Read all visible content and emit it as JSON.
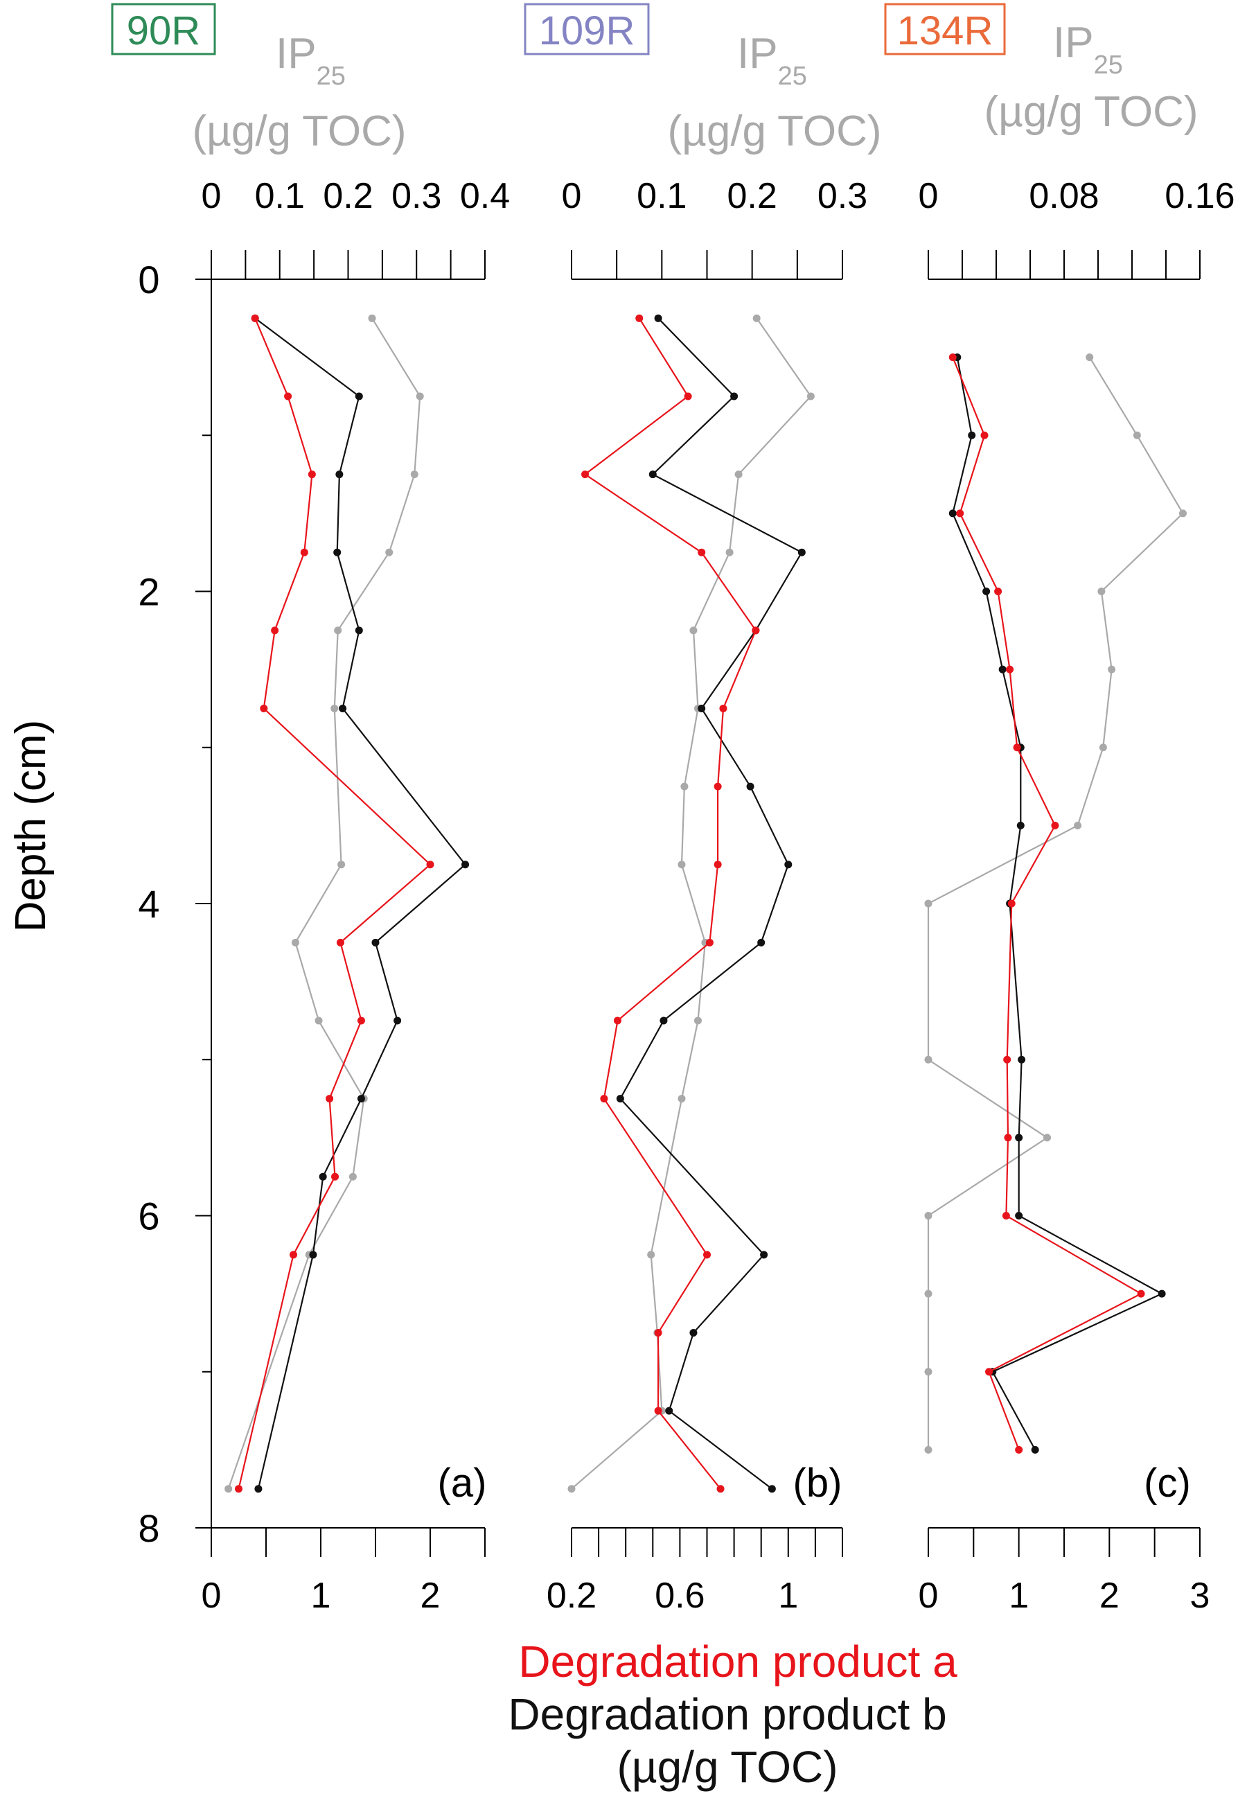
{
  "depth_axis": {
    "label": "Depth (cm)",
    "ticks": [
      "0",
      "2",
      "4",
      "6",
      "8"
    ],
    "range": [
      0,
      8
    ]
  },
  "bottom_legend": {
    "line1": "Degradation product a",
    "line2": "Degradation product b",
    "line3": "(µg/g TOC)"
  },
  "colors": {
    "product_a": "#e8141b",
    "product_b": "#111111",
    "ip25": "#a9a9a9",
    "station_90R": "#2e8b57",
    "station_109R": "#8484c4",
    "station_134R": "#ea6a3a"
  },
  "chart_data": [
    {
      "type": "line",
      "panel_label": "(a)",
      "station": "90R",
      "station_color": "#2e8b57",
      "ip25_label": "IP",
      "ip25_subscript": "25",
      "ip25_unit": "(µg/g TOC)",
      "top_axis": {
        "range": [
          0,
          0.4
        ],
        "ticks": [
          "0",
          "0.1",
          "0.2",
          "0.3",
          "0.4"
        ]
      },
      "bottom_axis": {
        "range": [
          0,
          2.5
        ],
        "ticks": [
          "0",
          "1",
          "2"
        ]
      },
      "series": [
        {
          "name": "Degradation product a",
          "axis": "bottom",
          "depth": [
            0.25,
            0.75,
            1.25,
            1.75,
            2.25,
            2.75,
            3.75,
            4.25,
            4.75,
            5.25,
            5.75,
            6.25,
            7.75
          ],
          "values": [
            0.4,
            0.7,
            0.92,
            0.85,
            0.58,
            0.48,
            2.0,
            1.18,
            1.37,
            1.08,
            1.13,
            0.75,
            0.25
          ]
        },
        {
          "name": "Degradation product b",
          "axis": "bottom",
          "depth": [
            0.25,
            0.75,
            1.25,
            1.75,
            2.25,
            2.75,
            3.75,
            4.25,
            4.75,
            5.25,
            5.75,
            6.25,
            7.75
          ],
          "values": [
            0.4,
            1.35,
            1.17,
            1.15,
            1.35,
            1.2,
            2.32,
            1.5,
            1.7,
            1.37,
            1.02,
            0.93,
            0.43
          ]
        },
        {
          "name": "IP25",
          "axis": "top",
          "depth": [
            0.25,
            0.75,
            1.25,
            1.75,
            2.25,
            2.75,
            3.75,
            4.25,
            4.75,
            5.25,
            5.75,
            6.25,
            7.75
          ],
          "values": [
            0.235,
            0.305,
            0.297,
            0.26,
            0.185,
            0.18,
            0.19,
            0.123,
            0.157,
            0.223,
            0.207,
            0.143,
            0.025
          ]
        }
      ]
    },
    {
      "type": "line",
      "panel_label": "(b)",
      "station": "109R",
      "station_color": "#8484c4",
      "ip25_label": "IP",
      "ip25_subscript": "25",
      "ip25_unit": "(µg/g TOC)",
      "top_axis": {
        "range": [
          0,
          0.3
        ],
        "ticks": [
          "0",
          "0.1",
          "0.2",
          "0.3"
        ]
      },
      "bottom_axis": {
        "range": [
          0.2,
          1.2
        ],
        "ticks": [
          "0.2",
          "0.6",
          "1"
        ]
      },
      "series": [
        {
          "name": "Degradation product a",
          "axis": "bottom",
          "depth": [
            0.25,
            0.75,
            1.25,
            1.75,
            2.25,
            2.75,
            3.25,
            3.75,
            4.25,
            4.75,
            5.25,
            6.25,
            6.75,
            7.25,
            7.75
          ],
          "values": [
            0.45,
            0.63,
            0.25,
            0.68,
            0.88,
            0.76,
            0.74,
            0.74,
            0.71,
            0.37,
            0.32,
            0.7,
            0.52,
            0.52,
            0.75
          ]
        },
        {
          "name": "Degradation product b",
          "axis": "bottom",
          "depth": [
            0.25,
            0.75,
            1.25,
            1.75,
            2.25,
            2.75,
            3.25,
            3.75,
            4.25,
            4.75,
            5.25,
            6.25,
            6.75,
            7.25,
            7.75
          ],
          "values": [
            0.52,
            0.8,
            0.5,
            1.05,
            0.88,
            0.68,
            0.86,
            1.0,
            0.9,
            0.54,
            0.38,
            0.91,
            0.65,
            0.56,
            0.94
          ]
        },
        {
          "name": "IP25",
          "axis": "top",
          "depth": [
            0.25,
            0.75,
            1.25,
            1.75,
            2.25,
            2.75,
            3.25,
            3.75,
            4.25,
            4.75,
            5.25,
            6.25,
            6.75,
            7.25,
            7.75
          ],
          "values": [
            0.205,
            0.265,
            0.185,
            0.175,
            0.135,
            0.14,
            0.125,
            0.122,
            0.148,
            0.14,
            0.122,
            0.088,
            0.095,
            0.1,
            0.0
          ]
        }
      ]
    },
    {
      "type": "line",
      "panel_label": "(c)",
      "station": "134R",
      "station_color": "#ea6a3a",
      "ip25_label": "IP",
      "ip25_subscript": "25",
      "ip25_unit": "(µg/g TOC)",
      "top_axis": {
        "range": [
          0,
          0.16
        ],
        "ticks": [
          "0",
          "0.08",
          "0.16"
        ]
      },
      "bottom_axis": {
        "range": [
          0,
          3
        ],
        "ticks": [
          "0",
          "1",
          "2",
          "3"
        ]
      },
      "series": [
        {
          "name": "Degradation product a",
          "axis": "bottom",
          "depth": [
            0.5,
            1.0,
            1.5,
            2.0,
            2.5,
            3.0,
            3.5,
            4.0,
            5.0,
            5.5,
            6.0,
            6.5,
            7.0,
            7.5
          ],
          "values": [
            0.27,
            0.62,
            0.35,
            0.77,
            0.9,
            0.98,
            1.4,
            0.92,
            0.87,
            0.88,
            0.86,
            2.35,
            0.67,
            1.0
          ]
        },
        {
          "name": "Degradation product b",
          "axis": "bottom",
          "depth": [
            0.5,
            1.0,
            1.5,
            2.0,
            2.5,
            3.0,
            3.5,
            4.0,
            5.0,
            5.5,
            6.0,
            6.5,
            7.0,
            7.5
          ],
          "values": [
            0.32,
            0.48,
            0.27,
            0.64,
            0.82,
            1.02,
            1.02,
            0.9,
            1.03,
            1.0,
            1.0,
            2.58,
            0.71,
            1.18
          ]
        },
        {
          "name": "IP25",
          "axis": "top",
          "depth": [
            0.5,
            1.0,
            1.5,
            2.0,
            2.5,
            3.0,
            3.5,
            4.0,
            5.0,
            5.5,
            6.0,
            6.5,
            7.0,
            7.5
          ],
          "values": [
            0.095,
            0.123,
            0.15,
            0.102,
            0.108,
            0.103,
            0.088,
            0.0,
            0.0,
            0.07,
            0.0,
            0.0,
            0.0,
            0.0
          ]
        }
      ]
    }
  ]
}
